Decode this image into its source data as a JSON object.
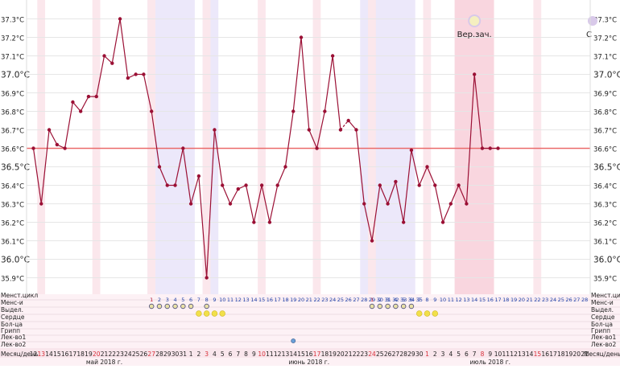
{
  "chart_data": {
    "type": "line",
    "y_ticks": [
      "35.9°C",
      "36.0°C",
      "36.1°C",
      "36.2°C",
      "36.3°C",
      "36.4°C",
      "36.5°C",
      "36.6°C",
      "36.7°C",
      "36.8°C",
      "36.9°C",
      "37.0°C",
      "37.1°C",
      "37.2°C",
      "37.3°C"
    ],
    "ylim": [
      35.85,
      37.35
    ],
    "baseline": 36.6,
    "days": [
      "12",
      "13",
      "14",
      "15",
      "16",
      "17",
      "18",
      "19",
      "20",
      "21",
      "22",
      "23",
      "24",
      "25",
      "26",
      "27",
      "28",
      "29",
      "30",
      "31",
      "1",
      "2",
      "3",
      "4",
      "5",
      "6",
      "7",
      "8",
      "9",
      "10",
      "11",
      "12",
      "13",
      "14",
      "15",
      "16",
      "17",
      "18",
      "19",
      "20",
      "21",
      "22",
      "23",
      "24",
      "25",
      "26",
      "27",
      "28",
      "29",
      "30",
      "1",
      "2",
      "3",
      "4",
      "5",
      "6",
      "7",
      "8",
      "9",
      "10",
      "11",
      "12",
      "13",
      "14",
      "15",
      "16",
      "17",
      "18",
      "19",
      "20",
      "21"
    ],
    "values": [
      36.6,
      36.3,
      36.7,
      36.62,
      36.6,
      36.85,
      36.8,
      36.88,
      36.88,
      37.1,
      37.06,
      37.3,
      36.98,
      37.0,
      37.0,
      36.8,
      36.5,
      36.4,
      36.4,
      36.6,
      36.3,
      36.45,
      35.9,
      36.7,
      36.4,
      36.3,
      36.38,
      36.4,
      36.2,
      36.4,
      36.2,
      36.4,
      36.5,
      36.8,
      37.2,
      36.7,
      36.6,
      36.8,
      37.1,
      36.7,
      36.75,
      36.7,
      36.3,
      36.1,
      36.4,
      36.3,
      36.42,
      36.2,
      36.59,
      36.4,
      36.5,
      36.4,
      36.2,
      36.3,
      36.4,
      36.3,
      37.0,
      36.6,
      36.6,
      36.6,
      null,
      null,
      null,
      null,
      null,
      null,
      null,
      null,
      null,
      null,
      null
    ],
    "dashed_segments": [
      [
        39,
        40
      ]
    ],
    "red_days": [
      "13",
      "20",
      "27",
      "3",
      "10",
      "17",
      "24",
      "1",
      "8",
      "15"
    ],
    "month_labels": [
      "май 2018 г.",
      "июнь 2018 г.",
      "июль 2018 г."
    ],
    "cycle_day_labels_1": [
      "1",
      "2",
      "3",
      "4",
      "5",
      "6",
      "7",
      "8",
      "9",
      "10",
      "11",
      "12",
      "13",
      "14",
      "15",
      "16",
      "17",
      "18",
      "19",
      "20",
      "21",
      "22",
      "23",
      "24",
      "25",
      "26",
      "27",
      "28",
      "29",
      "30",
      "31",
      "32",
      "33",
      "34",
      "35"
    ],
    "cycle_day_labels_2": [
      "1",
      "2",
      "3",
      "4",
      "5",
      "6",
      "7",
      "8",
      "9",
      "10",
      "11",
      "12",
      "13",
      "14",
      "15",
      "16",
      "17",
      "18",
      "19",
      "20",
      "21",
      "22",
      "23",
      "24",
      "25",
      "26",
      "27",
      "28"
    ],
    "row_labels": [
      "Менст.цикл",
      "Менс-и",
      "Выдел.",
      "Сердце",
      "Бол-ца",
      "Грипп",
      "Лек-во1",
      "Лек-во2"
    ],
    "bottom_label": "Месяц/день",
    "annotation": "Вер.зач.",
    "edge_annotation": "С",
    "colors": {
      "line": "#9b1035",
      "baseline": "#ea6b6b",
      "red_text": "#d8303a",
      "band_pink": "#fbe7ec",
      "band_lavender": "#ece8fa"
    }
  }
}
